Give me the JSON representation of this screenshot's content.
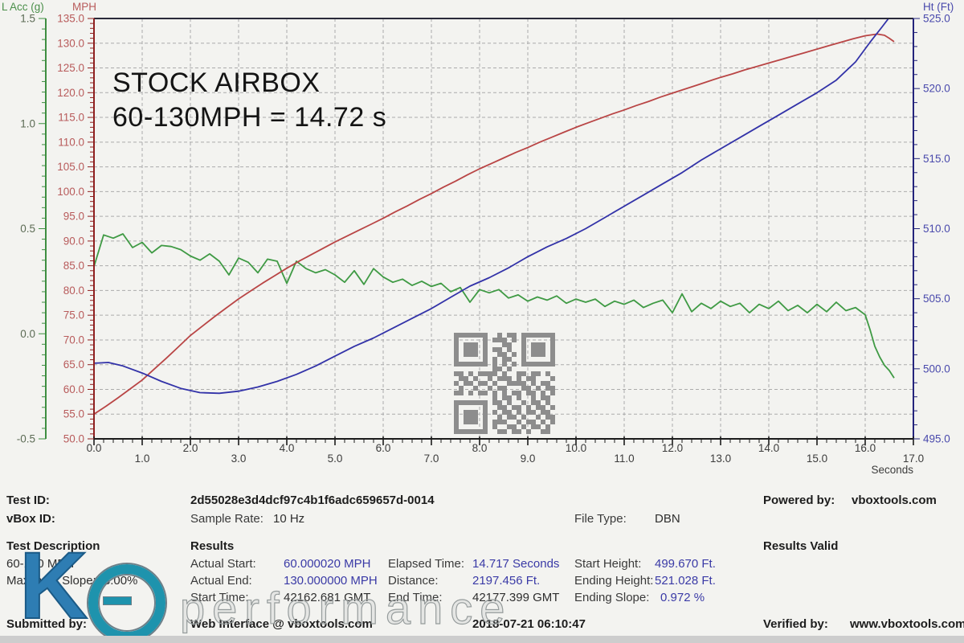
{
  "chart_data": {
    "type": "line",
    "title_lines": [
      "STOCK AIRBOX",
      "60-130MPH = 14.72 s"
    ],
    "grid_color": "#ababab",
    "x_axis": {
      "title": "Seconds",
      "min": 0,
      "max": 17,
      "major": 1,
      "minor": 0.2,
      "tick_values": [
        0,
        1,
        2,
        3,
        4,
        5,
        6,
        7,
        8,
        9,
        10,
        11,
        12,
        13,
        14,
        15,
        16,
        17
      ],
      "tick_labels": [
        "0.0",
        "1.0",
        "2.0",
        "3.0",
        "4.0",
        "5.0",
        "6.0",
        "7.0",
        "8.0",
        "9.0",
        "10.0",
        "11.0",
        "12.0",
        "13.0",
        "14.0",
        "15.0",
        "16.0",
        "17.0"
      ],
      "line_color": "#1c1c1c",
      "text_color": "#3c3c3c"
    },
    "left_axis_mph": {
      "title": "MPH",
      "min": 50,
      "max": 135,
      "major": 5,
      "minor": 1,
      "tick_values": [
        135,
        130,
        125,
        120,
        115,
        110,
        105,
        100,
        95,
        90,
        85,
        80,
        75,
        70,
        65,
        60,
        55,
        50
      ],
      "tick_labels": [
        "135.0",
        "130.0",
        "125.0",
        "120.0",
        "115.0",
        "110.0",
        "105.0",
        "100.0",
        "95.0",
        "90.0",
        "85.0",
        "80.0",
        "75.0",
        "70.0",
        "65.0",
        "60.0",
        "55.0",
        "50.0"
      ],
      "line_color": "#8f2020",
      "text_color": "#b85b5b"
    },
    "left_axis_acc": {
      "title": "L Acc (g)",
      "min": -0.5,
      "max": 1.5,
      "major": 0.5,
      "minor": 0.05,
      "tick_values": [
        1.5,
        1.0,
        0.5,
        0.0,
        -0.5
      ],
      "tick_labels": [
        "1.5",
        "1.0",
        "0.5",
        "0.0",
        "-0.5"
      ],
      "line_color": "#3e8e41",
      "text_color": "#5c6b55"
    },
    "right_axis_ht": {
      "title": "Ht (Ft)",
      "min": 495,
      "max": 525,
      "major": 5,
      "minor": 1,
      "tick_values": [
        525,
        520,
        515,
        510,
        505,
        500,
        495
      ],
      "tick_labels": [
        "525.0",
        "520.0",
        "515.0",
        "510.0",
        "505.0",
        "500.0",
        "495.0"
      ],
      "line_color": "#24247c",
      "text_color": "#4949ac"
    },
    "series": [
      {
        "name": "Lateral acceleration (g)",
        "axis": "acc",
        "color": "#3f9a44",
        "points": [
          [
            0,
            0.32
          ],
          [
            0.2,
            0.47
          ],
          [
            0.4,
            0.455
          ],
          [
            0.6,
            0.475
          ],
          [
            0.8,
            0.41
          ],
          [
            1,
            0.435
          ],
          [
            1.2,
            0.385
          ],
          [
            1.4,
            0.42
          ],
          [
            1.6,
            0.415
          ],
          [
            1.8,
            0.4
          ],
          [
            2,
            0.37
          ],
          [
            2.2,
            0.35
          ],
          [
            2.4,
            0.38
          ],
          [
            2.6,
            0.345
          ],
          [
            2.8,
            0.28
          ],
          [
            3,
            0.36
          ],
          [
            3.2,
            0.34
          ],
          [
            3.4,
            0.29
          ],
          [
            3.6,
            0.355
          ],
          [
            3.8,
            0.345
          ],
          [
            4,
            0.24
          ],
          [
            4.2,
            0.345
          ],
          [
            4.4,
            0.31
          ],
          [
            4.6,
            0.29
          ],
          [
            4.8,
            0.305
          ],
          [
            5,
            0.28
          ],
          [
            5.2,
            0.245
          ],
          [
            5.4,
            0.3
          ],
          [
            5.6,
            0.235
          ],
          [
            5.8,
            0.31
          ],
          [
            6,
            0.27
          ],
          [
            6.2,
            0.245
          ],
          [
            6.4,
            0.26
          ],
          [
            6.6,
            0.23
          ],
          [
            6.8,
            0.25
          ],
          [
            7,
            0.225
          ],
          [
            7.2,
            0.24
          ],
          [
            7.4,
            0.2
          ],
          [
            7.6,
            0.22
          ],
          [
            7.8,
            0.15
          ],
          [
            8,
            0.21
          ],
          [
            8.2,
            0.195
          ],
          [
            8.4,
            0.21
          ],
          [
            8.6,
            0.17
          ],
          [
            8.8,
            0.185
          ],
          [
            9,
            0.155
          ],
          [
            9.2,
            0.175
          ],
          [
            9.4,
            0.16
          ],
          [
            9.6,
            0.18
          ],
          [
            9.8,
            0.145
          ],
          [
            10,
            0.165
          ],
          [
            10.2,
            0.15
          ],
          [
            10.4,
            0.165
          ],
          [
            10.6,
            0.13
          ],
          [
            10.8,
            0.155
          ],
          [
            11,
            0.14
          ],
          [
            11.2,
            0.16
          ],
          [
            11.4,
            0.125
          ],
          [
            11.6,
            0.145
          ],
          [
            11.8,
            0.16
          ],
          [
            12,
            0.1
          ],
          [
            12.2,
            0.19
          ],
          [
            12.4,
            0.105
          ],
          [
            12.6,
            0.145
          ],
          [
            12.8,
            0.12
          ],
          [
            13,
            0.155
          ],
          [
            13.2,
            0.13
          ],
          [
            13.4,
            0.145
          ],
          [
            13.6,
            0.1
          ],
          [
            13.8,
            0.14
          ],
          [
            14,
            0.12
          ],
          [
            14.2,
            0.155
          ],
          [
            14.4,
            0.11
          ],
          [
            14.6,
            0.135
          ],
          [
            14.8,
            0.1
          ],
          [
            15,
            0.14
          ],
          [
            15.2,
            0.105
          ],
          [
            15.4,
            0.15
          ],
          [
            15.6,
            0.11
          ],
          [
            15.8,
            0.125
          ],
          [
            16,
            0.09
          ],
          [
            16.1,
            0.02
          ],
          [
            16.2,
            -0.06
          ],
          [
            16.3,
            -0.11
          ],
          [
            16.4,
            -0.15
          ],
          [
            16.5,
            -0.175
          ],
          [
            16.6,
            -0.21
          ]
        ]
      },
      {
        "name": "Speed (MPH)",
        "axis": "mph",
        "color": "#b94545",
        "points": [
          [
            0,
            55
          ],
          [
            0.25,
            56.6
          ],
          [
            0.5,
            58.3
          ],
          [
            0.75,
            60.1
          ],
          [
            1,
            61.9
          ],
          [
            1.25,
            64.1
          ],
          [
            1.5,
            66.3
          ],
          [
            1.75,
            68.6
          ],
          [
            2,
            70.9
          ],
          [
            2.25,
            72.8
          ],
          [
            2.5,
            74.7
          ],
          [
            2.75,
            76.5
          ],
          [
            3,
            78.3
          ],
          [
            3.25,
            79.9
          ],
          [
            3.5,
            81.5
          ],
          [
            3.75,
            83
          ],
          [
            4,
            84.5
          ],
          [
            4.25,
            85.9
          ],
          [
            4.5,
            87.2
          ],
          [
            4.75,
            88.5
          ],
          [
            5,
            89.8
          ],
          [
            5.25,
            91
          ],
          [
            5.5,
            92.2
          ],
          [
            5.75,
            93.4
          ],
          [
            6,
            94.6
          ],
          [
            6.25,
            95.9
          ],
          [
            6.5,
            97.1
          ],
          [
            6.75,
            98.4
          ],
          [
            7,
            99.6
          ],
          [
            7.25,
            100.9
          ],
          [
            7.5,
            102.1
          ],
          [
            7.75,
            103.4
          ],
          [
            8,
            104.6
          ],
          [
            8.25,
            105.7
          ],
          [
            8.5,
            106.8
          ],
          [
            8.75,
            107.9
          ],
          [
            9,
            108.9
          ],
          [
            9.25,
            110
          ],
          [
            9.5,
            111
          ],
          [
            9.75,
            112
          ],
          [
            10,
            113
          ],
          [
            10.25,
            113.9
          ],
          [
            10.5,
            114.8
          ],
          [
            10.75,
            115.7
          ],
          [
            11,
            116.5
          ],
          [
            11.25,
            117.4
          ],
          [
            11.5,
            118.2
          ],
          [
            11.75,
            119.1
          ],
          [
            12,
            119.9
          ],
          [
            12.25,
            120.7
          ],
          [
            12.5,
            121.5
          ],
          [
            12.75,
            122.3
          ],
          [
            13,
            123.1
          ],
          [
            13.25,
            123.8
          ],
          [
            13.5,
            124.6
          ],
          [
            13.75,
            125.3
          ],
          [
            14,
            126
          ],
          [
            14.25,
            126.7
          ],
          [
            14.5,
            127.4
          ],
          [
            14.75,
            128.1
          ],
          [
            15,
            128.8
          ],
          [
            15.25,
            129.5
          ],
          [
            15.5,
            130.2
          ],
          [
            15.75,
            130.9
          ],
          [
            16,
            131.5
          ],
          [
            16.25,
            131.85
          ],
          [
            16.4,
            131.6
          ],
          [
            16.5,
            131
          ],
          [
            16.6,
            130.3
          ]
        ]
      },
      {
        "name": "Height (Ft)",
        "axis": "ht",
        "color": "#3232a8",
        "points": [
          [
            0,
            500.4
          ],
          [
            0.3,
            500.45
          ],
          [
            0.6,
            500.2
          ],
          [
            1,
            499.7
          ],
          [
            1.4,
            499.1
          ],
          [
            1.8,
            498.6
          ],
          [
            2.2,
            498.3
          ],
          [
            2.6,
            498.25
          ],
          [
            3,
            498.4
          ],
          [
            3.4,
            498.7
          ],
          [
            3.8,
            499.1
          ],
          [
            4.2,
            499.6
          ],
          [
            4.6,
            500.2
          ],
          [
            5,
            500.9
          ],
          [
            5.4,
            501.6
          ],
          [
            5.8,
            502.2
          ],
          [
            6.2,
            502.9
          ],
          [
            6.6,
            503.6
          ],
          [
            7,
            504.3
          ],
          [
            7.4,
            505.1
          ],
          [
            7.8,
            505.9
          ],
          [
            8.2,
            506.5
          ],
          [
            8.6,
            507.2
          ],
          [
            9,
            508
          ],
          [
            9.4,
            508.7
          ],
          [
            9.8,
            509.3
          ],
          [
            10.2,
            510
          ],
          [
            10.6,
            510.8
          ],
          [
            11,
            511.6
          ],
          [
            11.4,
            512.4
          ],
          [
            11.8,
            513.2
          ],
          [
            12.2,
            514
          ],
          [
            12.6,
            514.9
          ],
          [
            13,
            515.7
          ],
          [
            13.4,
            516.5
          ],
          [
            13.8,
            517.3
          ],
          [
            14.2,
            518.1
          ],
          [
            14.6,
            518.9
          ],
          [
            15,
            519.7
          ],
          [
            15.4,
            520.6
          ],
          [
            15.8,
            521.9
          ],
          [
            16.1,
            523.3
          ],
          [
            16.35,
            524.4
          ],
          [
            16.55,
            525.3
          ]
        ]
      }
    ]
  },
  "qr": {
    "matrix": [
      "111111100101101111111",
      "100000101110101000001",
      "101110100011001011101",
      "101110101101001011101",
      "101110100110101011101",
      "100000101011001000001",
      "111111101010101111111",
      "000000001101000000000",
      "110101111010011011010",
      "011010010111010110001",
      "101101101001111010110",
      "010010010110001101011",
      "110101101010110110101",
      "000000001011010010110",
      "111111101101001011010",
      "100000100110110101101",
      "101110101011010110110",
      "101110100101101001011",
      "101110101110010110101",
      "100000101001101011010",
      "111111100110110100110"
    ]
  },
  "watermark": {
    "letter": "K",
    "text": "performance"
  },
  "footer": {
    "test_id_label": "Test ID:",
    "test_id_value": "2d55028e3d4dcf97c4b1f6adc659657d-0014",
    "powered_by_label": "Powered by:",
    "powered_by_value": "vboxtools.com",
    "vbox_id_label": "vBox ID:",
    "sample_rate_label": "Sample Rate:",
    "sample_rate_value": "10 Hz",
    "file_type_label": "File Type:",
    "file_type_value": "DBN",
    "test_description_header": "Test Description",
    "results_header": "Results",
    "results_valid": "Results Valid",
    "test_description_line1": "60-130 MPH",
    "test_description_line2": "Maximum Slope:  -3.00%",
    "actual_start_label": "Actual Start:",
    "actual_start_value": "60.000020 MPH",
    "elapsed_time_label": "Elapsed Time:",
    "elapsed_time_value": "14.717 Seconds",
    "start_height_label": "Start Height:",
    "start_height_value": "499.670 Ft.",
    "actual_end_label": "Actual End:",
    "actual_end_value": "130.000000 MPH",
    "distance_label": "Distance:",
    "distance_value": "2197.456 Ft.",
    "ending_height_label": "Ending Height:",
    "ending_height_value": "521.028 Ft.",
    "start_time_label": "Start Time:",
    "start_time_value": "42162.681 GMT",
    "end_time_label": "End Time:",
    "end_time_value": "42177.399 GMT",
    "ending_slope_label": "Ending Slope:",
    "ending_slope_value": "0.972 %",
    "submitted_by_label": "Submitted by:",
    "submitted_by_value": "Web Interface @ vboxtools.com",
    "datetime": "2018-07-21 06:10:47",
    "verified_by_label": "Verified by:",
    "verified_by_value": "www.vboxtools.com"
  }
}
